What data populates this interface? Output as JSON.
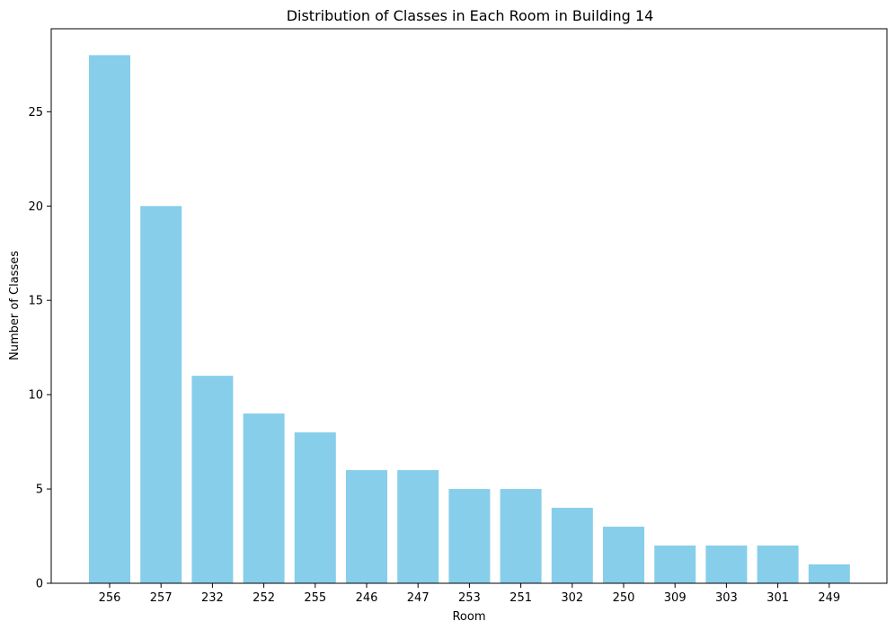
{
  "chart_data": {
    "type": "bar",
    "title": "Distribution of Classes in Each Room in Building 14",
    "xlabel": "Room",
    "ylabel": "Number of Classes",
    "categories": [
      "256",
      "257",
      "232",
      "252",
      "255",
      "246",
      "247",
      "253",
      "251",
      "302",
      "250",
      "309",
      "303",
      "301",
      "249"
    ],
    "values": [
      28,
      20,
      11,
      9,
      8,
      6,
      6,
      5,
      5,
      4,
      3,
      2,
      2,
      2,
      1
    ],
    "ylim": [
      0,
      29.4
    ],
    "yticks": [
      0,
      5,
      10,
      15,
      20,
      25
    ],
    "ytick_labels": [
      "0",
      "5",
      "10",
      "15",
      "20",
      "25"
    ],
    "grid": false,
    "bar_color": "#87ceeb"
  }
}
